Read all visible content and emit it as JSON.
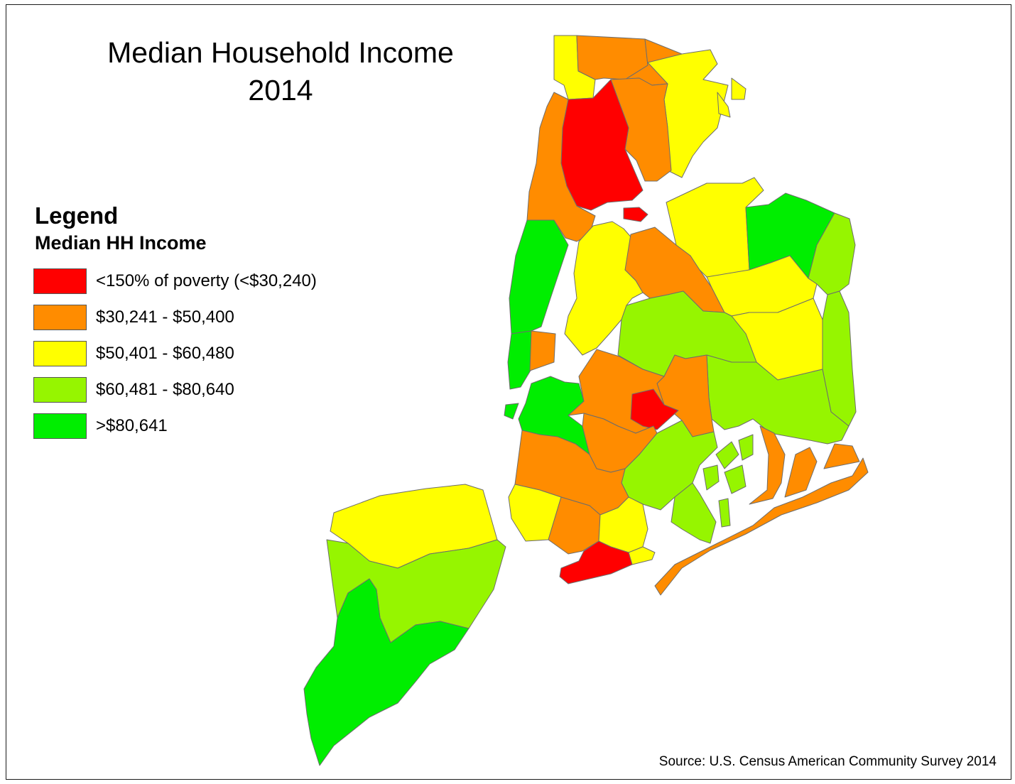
{
  "title": {
    "line1": "Median Household Income",
    "line2": "2014"
  },
  "legend": {
    "heading": "Legend",
    "subheading": "Median HH Income",
    "items": [
      {
        "label": "<150% of poverty (<$30,240)",
        "color": "#ff0000"
      },
      {
        "label": "$30,241 - $50,400",
        "color": "#ff8c00"
      },
      {
        "label": "$50,401 - $60,480",
        "color": "#ffff00"
      },
      {
        "label": "$60,481 - $80,640",
        "color": "#96f500"
      },
      {
        "label": ">$80,641",
        "color": "#00ee00"
      }
    ]
  },
  "source": "Source: U.S. Census American Community Survey 2014"
}
